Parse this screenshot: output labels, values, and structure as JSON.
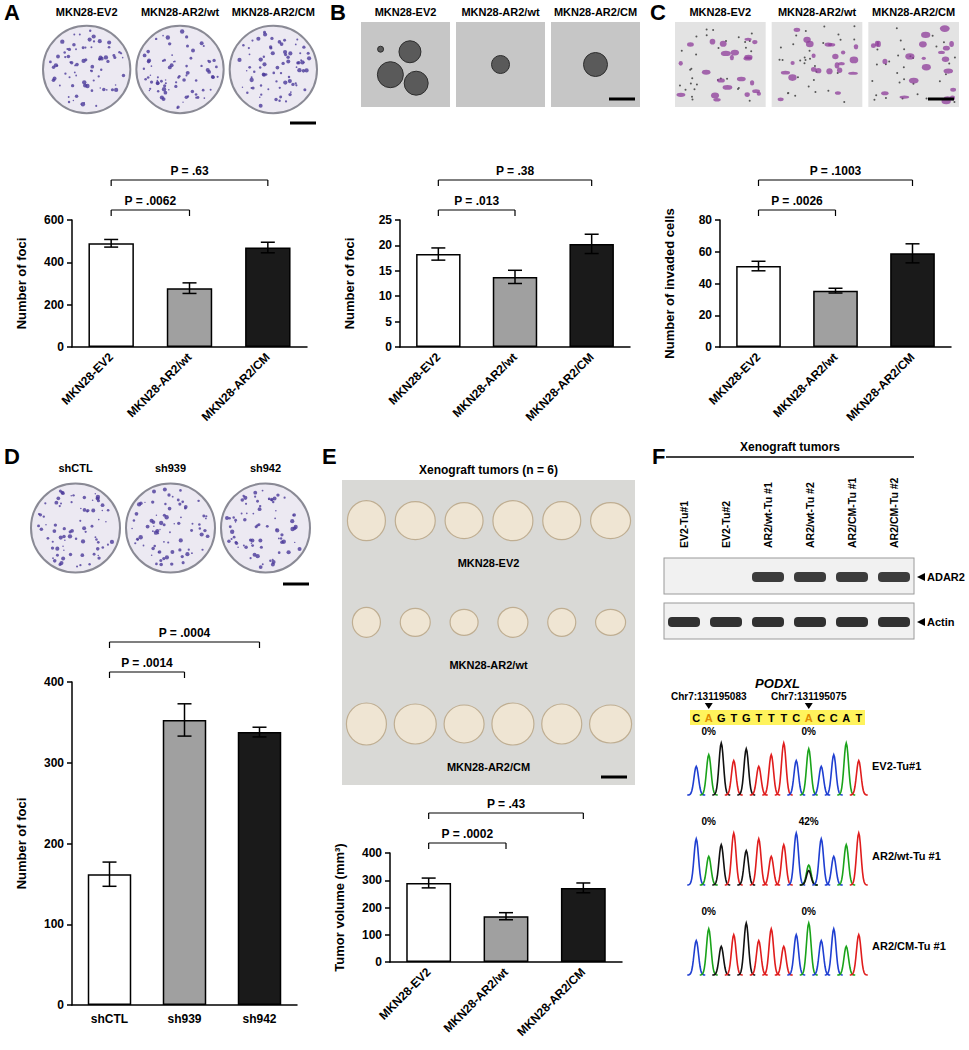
{
  "chart_data": [
    {
      "panel": "A",
      "type": "bar",
      "image_labels": [
        "MKN28-EV2",
        "MKN28-AR2/wt",
        "MKN28-AR2/CM"
      ],
      "categories": [
        "MKN28-EV2",
        "MKN28-AR2/wt",
        "MKN28-AR2/CM"
      ],
      "values": [
        490,
        278,
        470
      ],
      "errors": [
        18,
        25,
        25
      ],
      "colors": [
        "#ffffff",
        "#a0a0a0",
        "#1a1a1a"
      ],
      "y_label": "Number of foci",
      "ylim": [
        0,
        600
      ],
      "yticks": [
        0,
        200,
        400,
        600
      ],
      "comparisons": [
        {
          "pair": [
            0,
            1
          ],
          "label": "P = .0062"
        },
        {
          "pair": [
            0,
            2
          ],
          "label": "P = .63"
        }
      ]
    },
    {
      "panel": "B",
      "type": "bar",
      "image_labels": [
        "MKN28-EV2",
        "MKN28-AR2/wt",
        "MKN28-AR2/CM"
      ],
      "categories": [
        "MKN28-EV2",
        "MKN28-AR2/wt",
        "MKN28-AR2/CM"
      ],
      "values": [
        18.3,
        13.8,
        20.3
      ],
      "errors": [
        1.2,
        1.3,
        1.9
      ],
      "colors": [
        "#ffffff",
        "#a0a0a0",
        "#1a1a1a"
      ],
      "y_label": "Number of foci",
      "ylim": [
        0,
        25
      ],
      "yticks": [
        0,
        5,
        10,
        15,
        20,
        25
      ],
      "comparisons": [
        {
          "pair": [
            0,
            1
          ],
          "label": "P = .013"
        },
        {
          "pair": [
            0,
            2
          ],
          "label": "P = .38"
        }
      ]
    },
    {
      "panel": "C",
      "type": "bar",
      "image_labels": [
        "MKN28-EV2",
        "MKN28-AR2/wt",
        "MKN28-AR2/CM"
      ],
      "categories": [
        "MKN28-EV2",
        "MKN28-AR2/wt",
        "MKN28-AR2/CM"
      ],
      "values": [
        51,
        35.5,
        59
      ],
      "errors": [
        3,
        1.5,
        6
      ],
      "colors": [
        "#ffffff",
        "#a0a0a0",
        "#1a1a1a"
      ],
      "y_label": "Number of invaded cells",
      "ylim": [
        0,
        80
      ],
      "yticks": [
        0,
        20,
        40,
        60,
        80
      ],
      "comparisons": [
        {
          "pair": [
            0,
            1
          ],
          "label": "P = .0026"
        },
        {
          "pair": [
            0,
            2
          ],
          "label": "P = .1003"
        }
      ]
    },
    {
      "panel": "D",
      "type": "bar",
      "image_labels": [
        "shCTL",
        "sh939",
        "sh942"
      ],
      "categories": [
        "shCTL",
        "sh939",
        "sh942"
      ],
      "values": [
        162,
        353,
        338
      ],
      "errors": [
        15,
        20,
        6
      ],
      "colors": [
        "#ffffff",
        "#a0a0a0",
        "#1a1a1a"
      ],
      "y_label": "Number of foci",
      "ylim": [
        0,
        400
      ],
      "yticks": [
        0,
        100,
        200,
        300,
        400
      ],
      "comparisons": [
        {
          "pair": [
            0,
            1
          ],
          "label": "P = .0014"
        },
        {
          "pair": [
            0,
            2
          ],
          "label": "P = .0004"
        }
      ]
    },
    {
      "panel": "E",
      "type": "bar",
      "image_title": "Xenograft tumors (n = 6)",
      "image_labels": [
        "MKN28-EV2",
        "MKN28-AR2/wt",
        "MKN28-AR2/CM"
      ],
      "categories": [
        "MKN28-EV2",
        "MKN28-AR2/wt",
        "MKN28-AR2/CM"
      ],
      "values": [
        290,
        168,
        272
      ],
      "errors": [
        18,
        13,
        18
      ],
      "colors": [
        "#ffffff",
        "#a0a0a0",
        "#1a1a1a"
      ],
      "y_label": "Tumor volume (mm³)",
      "ylim": [
        0,
        400
      ],
      "yticks": [
        0,
        100,
        200,
        300,
        400
      ],
      "comparisons": [
        {
          "pair": [
            0,
            1
          ],
          "label": "P = .0002"
        },
        {
          "pair": [
            0,
            2
          ],
          "label": "P = .43"
        }
      ]
    }
  ],
  "panel_f": {
    "panel": "F",
    "title": "Xenograft tumors",
    "lanes": [
      "EV2-Tu#1",
      "EV2-Tu#2",
      "AR2/wt-Tu #1",
      "AR2/wt-Tu #2",
      "AR2/CM-Tu #1",
      "AR2/CM-Tu #2"
    ],
    "blots": [
      {
        "label": "ADAR2",
        "detected": [
          false,
          false,
          true,
          true,
          true,
          true
        ]
      },
      {
        "label": "Actin",
        "detected": [
          true,
          true,
          true,
          true,
          true,
          true
        ]
      }
    ],
    "gene": "PODXL",
    "sequence": [
      "C",
      "A",
      "G",
      "T",
      "G",
      "T",
      "T",
      "T",
      "C",
      "A",
      "C",
      "C",
      "A",
      "T"
    ],
    "sites": [
      {
        "index": 1,
        "label": "Chr7:131195083"
      },
      {
        "index": 9,
        "label": "Chr7:131195075"
      }
    ],
    "traces": [
      {
        "label": "EV2-Tu#1",
        "values": [
          0,
          0
        ],
        "value_labels": [
          "0%",
          "0%"
        ]
      },
      {
        "label": "AR2/wt-Tu #1",
        "values": [
          0,
          42
        ],
        "value_labels": [
          "0%",
          "42%"
        ]
      },
      {
        "label": "AR2/CM-Tu #1",
        "values": [
          0,
          0
        ],
        "value_labels": [
          "0%",
          "0%"
        ]
      }
    ]
  }
}
